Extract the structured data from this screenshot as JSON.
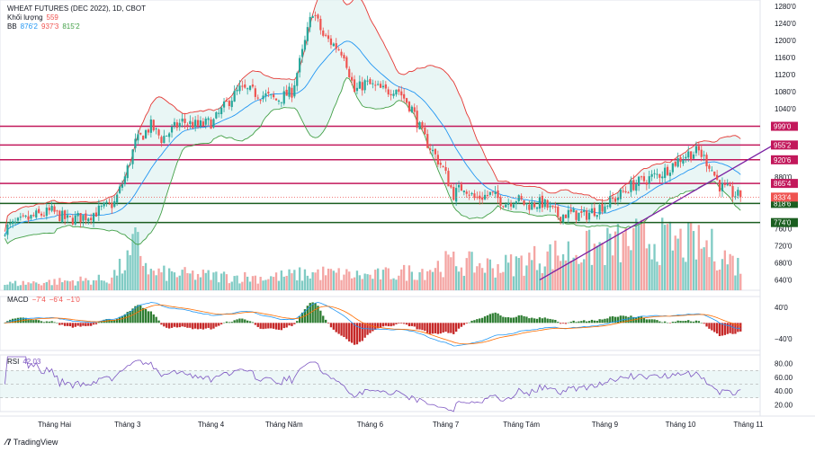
{
  "header": {
    "title": "WHEAT FUTURES (DEC 2022), 1D, CBOT",
    "volume_label": "Khối lượng",
    "volume_value": "559",
    "bb_label": "BB",
    "bb_basis": "876'2",
    "bb_upper": "937'3",
    "bb_lower": "815'2"
  },
  "macd_legend": {
    "label": "MACD",
    "v1": "−7'4",
    "v2": "−6'4",
    "v3": "−1'0"
  },
  "rsi_legend": {
    "label": "RSI",
    "value": "42.03"
  },
  "footer": {
    "brand": "TradingView"
  },
  "colors": {
    "up": "#26a69a",
    "down": "#ef5350",
    "bb_upper": "#e53935",
    "bb_basis": "#2196f3",
    "bb_lower": "#43a047",
    "bb_fill": "#e0f2f1",
    "hline": "#c2185b",
    "hline_green": "#1b5e20",
    "trendline": "#7b1fa2",
    "macd_line": "#2196f3",
    "signal_line": "#ff6d00",
    "rsi_line": "#7e57c2"
  },
  "x_axis": {
    "labels": [
      "Tháng Hai",
      "Tháng 3",
      "Tháng 4",
      "Tháng Năm",
      "Tháng 6",
      "Tháng 7",
      "Tháng Tám",
      "Tháng 9",
      "Tháng 10",
      "Tháng 11"
    ],
    "label_day": [
      19,
      47,
      79,
      107,
      140,
      169,
      198,
      230,
      259,
      285
    ]
  },
  "chart_data": [
    {
      "type": "candlestick",
      "title": "WHEAT FUTURES (DEC 2022), 1D, CBOT",
      "ylim": [
        620,
        1290
      ],
      "yticks": [
        "1280'0",
        "1240'0",
        "1200'0",
        "1160'0",
        "1120'0",
        "1080'0",
        "1040'0",
        "880'0",
        "760'0",
        "720'0",
        "680'0",
        "640'0"
      ],
      "ytick_values": [
        1280,
        1240,
        1200,
        1160,
        1120,
        1080,
        1040,
        880,
        760,
        720,
        680,
        640
      ],
      "horizontal_lines": [
        {
          "value": 999,
          "label": "999'0",
          "color": "#c2185b"
        },
        {
          "value": 955.25,
          "label": "955'2",
          "color": "#c2185b"
        },
        {
          "value": 920.75,
          "label": "920'6",
          "color": "#c2185b"
        },
        {
          "value": 865.5,
          "label": "865'4",
          "color": "#c2185b"
        },
        {
          "value": 818.75,
          "label": "818'6",
          "color": "#1b5e20"
        },
        {
          "value": 774,
          "label": "774'0",
          "color": "#1b5e20"
        }
      ],
      "last_price": {
        "value": 833.5,
        "label": "833'4"
      },
      "price_keyframes": [
        [
          0,
          760
        ],
        [
          12,
          790
        ],
        [
          18,
          800
        ],
        [
          24,
          780
        ],
        [
          32,
          790
        ],
        [
          42,
          820
        ],
        [
          46,
          880
        ],
        [
          50,
          960
        ],
        [
          56,
          1000
        ],
        [
          60,
          970
        ],
        [
          68,
          1010
        ],
        [
          74,
          1000
        ],
        [
          80,
          1010
        ],
        [
          86,
          1060
        ],
        [
          90,
          1085
        ],
        [
          94,
          1080
        ],
        [
          100,
          1070
        ],
        [
          104,
          1060
        ],
        [
          110,
          1080
        ],
        [
          114,
          1170
        ],
        [
          118,
          1270
        ],
        [
          122,
          1210
        ],
        [
          126,
          1190
        ],
        [
          130,
          1170
        ],
        [
          134,
          1080
        ],
        [
          138,
          1100
        ],
        [
          142,
          1090
        ],
        [
          146,
          1080
        ],
        [
          150,
          1090
        ],
        [
          156,
          1040
        ],
        [
          160,
          980
        ],
        [
          164,
          940
        ],
        [
          168,
          900
        ],
        [
          172,
          840
        ],
        [
          176,
          860
        ],
        [
          180,
          830
        ],
        [
          186,
          840
        ],
        [
          192,
          820
        ],
        [
          196,
          830
        ],
        [
          200,
          815
        ],
        [
          206,
          820
        ],
        [
          212,
          790
        ],
        [
          216,
          795
        ],
        [
          222,
          790
        ],
        [
          228,
          810
        ],
        [
          234,
          830
        ],
        [
          240,
          860
        ],
        [
          246,
          875
        ],
        [
          252,
          890
        ],
        [
          258,
          920
        ],
        [
          262,
          935
        ],
        [
          266,
          940
        ],
        [
          270,
          910
        ],
        [
          274,
          860
        ],
        [
          278,
          845
        ],
        [
          282,
          833.5
        ]
      ],
      "trendline": [
        [
          205,
          640
        ],
        [
          296,
          960
        ]
      ],
      "volume_ylim": [
        0,
        80000
      ],
      "volume_keyframes": [
        [
          0,
          8000
        ],
        [
          40,
          14000
        ],
        [
          48,
          40000
        ],
        [
          50,
          60000
        ],
        [
          56,
          22000
        ],
        [
          80,
          18000
        ],
        [
          100,
          16000
        ],
        [
          120,
          22000
        ],
        [
          140,
          18000
        ],
        [
          160,
          25000
        ],
        [
          170,
          35000
        ],
        [
          190,
          30000
        ],
        [
          210,
          45000
        ],
        [
          230,
          55000
        ],
        [
          245,
          65000
        ],
        [
          258,
          60000
        ],
        [
          270,
          55000
        ],
        [
          282,
          30000
        ]
      ],
      "bollinger_period": 20,
      "bollinger_mult": 2
    },
    {
      "type": "macd",
      "title": "MACD",
      "ylim": [
        -70,
        60
      ],
      "yticks": [
        "40'0",
        "−40'0"
      ],
      "ytick_values": [
        40,
        -40
      ],
      "values": {
        "macd": "−7'4",
        "signal": "−6'4",
        "histogram": "−1'0"
      }
    },
    {
      "type": "rsi",
      "title": "RSI",
      "ylim": [
        10,
        90
      ],
      "yticks": [
        "80.00",
        "60.00",
        "40.00",
        "20.00"
      ],
      "ytick_values": [
        80,
        60,
        40,
        20
      ],
      "band": [
        30,
        70
      ],
      "last_value": 42.03
    }
  ]
}
